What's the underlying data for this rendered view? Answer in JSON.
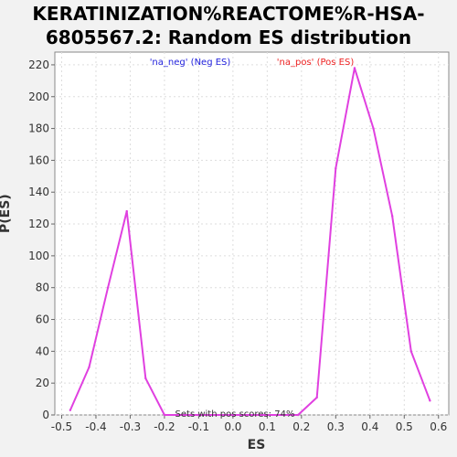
{
  "title_line1": "KERATINIZATION%REACTOME%R-HSA-",
  "title_line2": "6805567.2: Random ES distribution",
  "chart_data": {
    "type": "line",
    "title": "KERATINIZATION%REACTOME%R-HSA-6805567.2: Random ES distribution",
    "xlabel": "ES",
    "ylabel": "P(ES)",
    "xlim": [
      -0.52,
      0.63
    ],
    "ylim": [
      0,
      228
    ],
    "xticks": [
      -0.5,
      -0.4,
      -0.3,
      -0.2,
      -0.1,
      0.0,
      0.1,
      0.2,
      0.3,
      0.4,
      0.5,
      0.6
    ],
    "xtick_labels": [
      "-0.5",
      "-0.4",
      "-0.3",
      "-0.2",
      "-0.1",
      "0.0",
      "0.1",
      "0.2",
      "0.3",
      "0.4",
      "0.5",
      "0.6"
    ],
    "yticks": [
      0,
      20,
      40,
      60,
      80,
      100,
      120,
      140,
      160,
      180,
      200,
      220
    ],
    "grid": true,
    "series": [
      {
        "name": "'na_neg' (Neg ES)",
        "color": "#e040e0",
        "x": [
          -0.475,
          -0.42,
          -0.365,
          -0.31,
          -0.255,
          -0.2,
          -0.145
        ],
        "y": [
          3,
          30,
          80,
          128,
          23,
          0,
          0
        ]
      },
      {
        "name": "'na_pos' (Pos ES)",
        "color": "#e040e0",
        "x": [
          -0.145,
          0.19,
          0.245,
          0.3,
          0.355,
          0.41,
          0.465,
          0.52,
          0.575
        ],
        "y": [
          0,
          0,
          11,
          155,
          218,
          180,
          125,
          40,
          9
        ]
      }
    ],
    "legend": [
      {
        "label": "'na_neg' (Neg ES)",
        "color": "#2222dd"
      },
      {
        "label": "'na_pos' (Pos ES)",
        "color": "#ee2222"
      }
    ],
    "annotation": "Sets with pos scores: 74%"
  }
}
